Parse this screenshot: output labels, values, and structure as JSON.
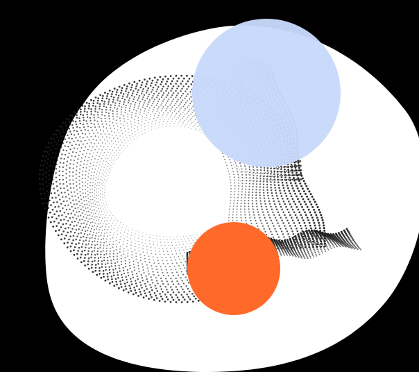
{
  "illustration": {
    "colors": {
      "background": "#000000",
      "backdrop": "#ffffff",
      "dots": "#1f1f1f",
      "blue_circle": "#c8d8fb",
      "orange_circle": "#ff6a2a"
    },
    "icons": [
      "dotted-ribbon-icon",
      "blue-circle-icon",
      "orange-circle-icon"
    ]
  }
}
